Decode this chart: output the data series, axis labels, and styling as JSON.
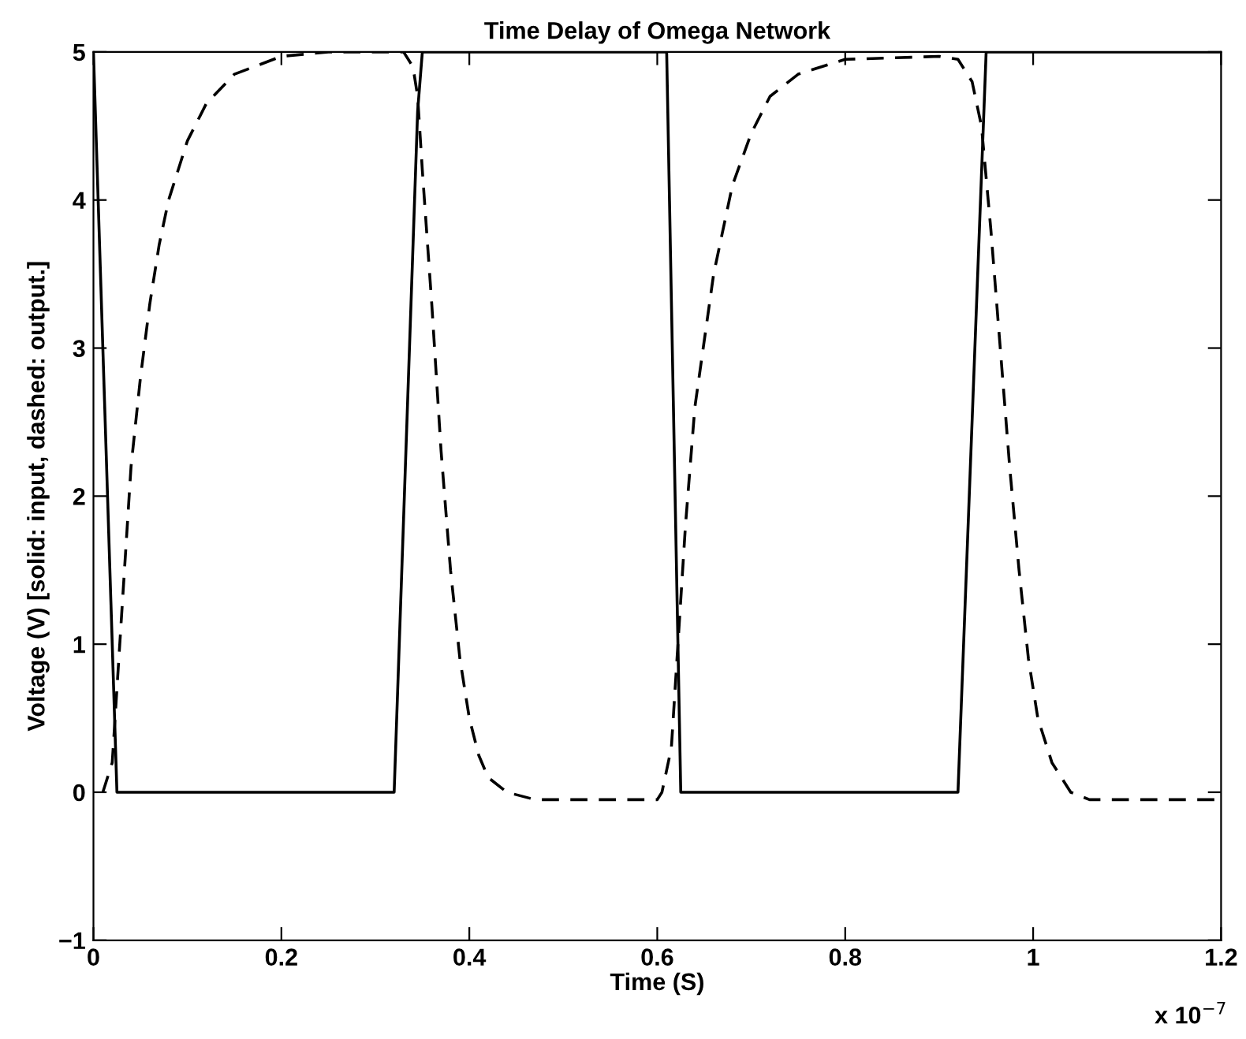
{
  "chart_data": {
    "type": "line",
    "title": "Time Delay of Omega Network",
    "xlabel": "Time (S)",
    "ylabel": "Voltage (V) [solid: input, dashed: output.]",
    "annotations": [
      "x 10$^{−7}$"
    ],
    "xlim": [
      0,
      1.2
    ],
    "xticks": [
      0,
      0.2,
      0.4,
      0.6,
      0.8,
      1,
      1.2
    ],
    "ylim": [
      -1,
      5
    ],
    "yticks": [
      {
        "value": -1,
        "label": "−1"
      },
      0,
      1,
      2,
      3,
      4,
      5
    ],
    "grid": false,
    "legend": false,
    "marker": "none",
    "series": [
      {
        "color": "#000000",
        "line_style": "solid",
        "x": [
          0,
          0.025,
          0.32,
          0.345,
          0.35,
          0.61,
          0.625,
          0.92,
          0.95,
          1.2
        ],
        "values": [
          5,
          0,
          0,
          4.6,
          5,
          5,
          0,
          0,
          5,
          5
        ]
      },
      {
        "color": "#000000",
        "line_style": "dashed",
        "x": [
          0.01,
          0.02,
          0.03,
          0.04,
          0.05,
          0.06,
          0.07,
          0.08,
          0.1,
          0.12,
          0.15,
          0.2,
          0.25,
          0.33,
          0.34,
          0.345,
          0.35,
          0.36,
          0.37,
          0.38,
          0.39,
          0.4,
          0.41,
          0.42,
          0.44,
          0.47,
          0.6,
          0.605,
          0.615,
          0.62,
          0.63,
          0.64,
          0.66,
          0.68,
          0.7,
          0.72,
          0.75,
          0.8,
          0.9,
          0.92,
          0.935,
          0.945,
          0.955,
          0.965,
          0.975,
          0.985,
          0.995,
          1.005,
          1.02,
          1.04,
          1.06,
          1.2
        ],
        "values": [
          0,
          0.2,
          1.2,
          2.2,
          2.8,
          3.3,
          3.7,
          4.0,
          4.4,
          4.65,
          4.85,
          4.97,
          5,
          5,
          4.9,
          4.7,
          4.2,
          3.3,
          2.3,
          1.5,
          0.9,
          0.5,
          0.25,
          0.1,
          0.0,
          -0.05,
          -0.05,
          0.0,
          0.3,
          0.8,
          1.8,
          2.6,
          3.5,
          4.1,
          4.45,
          4.7,
          4.85,
          4.95,
          4.97,
          4.95,
          4.8,
          4.5,
          3.8,
          3.0,
          2.2,
          1.5,
          0.9,
          0.5,
          0.2,
          0.0,
          -0.05,
          -0.05
        ]
      }
    ]
  }
}
